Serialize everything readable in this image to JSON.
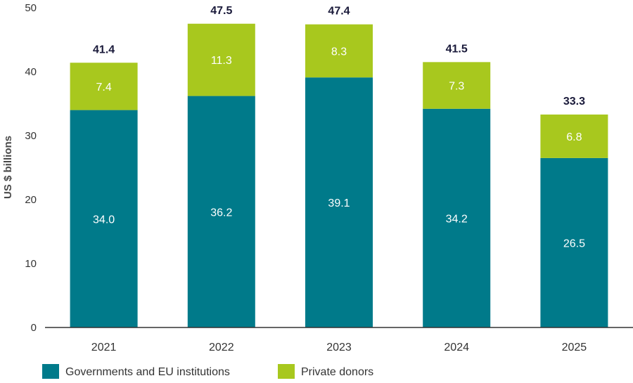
{
  "chart_data": {
    "type": "bar",
    "stacked": true,
    "categories": [
      "2021",
      "2022",
      "2023",
      "2024",
      "2025"
    ],
    "series": [
      {
        "name": "Governments and EU institutions",
        "color": "#007a8a",
        "values": [
          34.0,
          36.2,
          39.1,
          34.2,
          26.5
        ],
        "labels": [
          "34.0",
          "36.2",
          "39.1",
          "34.2",
          "26.5"
        ]
      },
      {
        "name": "Private donors",
        "color": "#a8c81e",
        "values": [
          7.4,
          11.3,
          8.3,
          7.3,
          6.8
        ],
        "labels": [
          "7.4",
          "11.3",
          "8.3",
          "7.3",
          "6.8"
        ]
      }
    ],
    "totals": [
      "41.4",
      "47.5",
      "47.4",
      "41.5",
      "33.3"
    ],
    "ylabel": "US $ billions",
    "ylim": [
      0,
      50
    ],
    "yticks": [
      "0",
      "10",
      "20",
      "30",
      "40",
      "50"
    ],
    "grid": false,
    "legend_position": "bottom-left"
  }
}
